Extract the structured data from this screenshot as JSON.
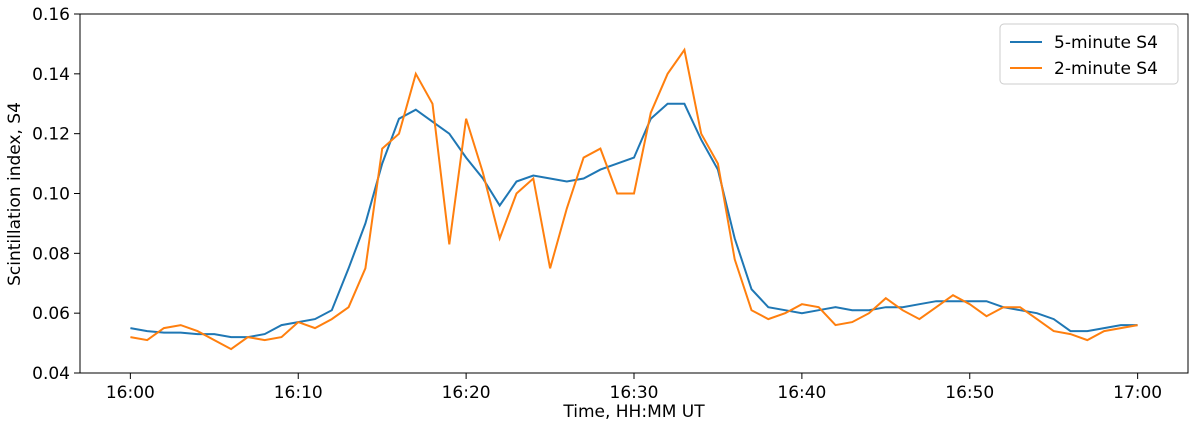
{
  "chart_data": {
    "type": "line",
    "xlabel": "Time, HH:MM UT",
    "ylabel": "Scintillation index, S4",
    "x": [
      "16:00",
      "16:01",
      "16:02",
      "16:03",
      "16:04",
      "16:05",
      "16:06",
      "16:07",
      "16:08",
      "16:09",
      "16:10",
      "16:11",
      "16:12",
      "16:13",
      "16:14",
      "16:15",
      "16:16",
      "16:17",
      "16:18",
      "16:19",
      "16:20",
      "16:21",
      "16:22",
      "16:23",
      "16:24",
      "16:25",
      "16:26",
      "16:27",
      "16:28",
      "16:29",
      "16:30",
      "16:31",
      "16:32",
      "16:33",
      "16:34",
      "16:35",
      "16:36",
      "16:37",
      "16:38",
      "16:39",
      "16:40",
      "16:41",
      "16:42",
      "16:43",
      "16:44",
      "16:45",
      "16:46",
      "16:47",
      "16:48",
      "16:49",
      "16:50",
      "16:51",
      "16:52",
      "16:53",
      "16:54",
      "16:55",
      "16:56",
      "16:57",
      "16:58",
      "16:59",
      "17:00"
    ],
    "series": [
      {
        "name": "5-minute S4",
        "color": "#1f77b4",
        "values": [
          0.055,
          0.054,
          0.0535,
          0.0535,
          0.053,
          0.053,
          0.052,
          0.052,
          0.053,
          0.056,
          0.057,
          0.058,
          0.061,
          0.075,
          0.09,
          0.11,
          0.125,
          0.128,
          0.124,
          0.12,
          0.112,
          0.105,
          0.096,
          0.104,
          0.106,
          0.105,
          0.104,
          0.105,
          0.108,
          0.11,
          0.112,
          0.125,
          0.13,
          0.13,
          0.118,
          0.108,
          0.085,
          0.068,
          0.062,
          0.061,
          0.06,
          0.061,
          0.062,
          0.061,
          0.061,
          0.062,
          0.062,
          0.063,
          0.064,
          0.064,
          0.064,
          0.064,
          0.062,
          0.061,
          0.06,
          0.058,
          0.054,
          0.054,
          0.055,
          0.056,
          0.056
        ]
      },
      {
        "name": "2-minute S4",
        "color": "#ff7f0e",
        "values": [
          0.052,
          0.051,
          0.055,
          0.056,
          0.054,
          0.051,
          0.048,
          0.052,
          0.051,
          0.052,
          0.057,
          0.055,
          0.058,
          0.062,
          0.075,
          0.115,
          0.12,
          0.14,
          0.13,
          0.083,
          0.125,
          0.107,
          0.085,
          0.1,
          0.105,
          0.075,
          0.095,
          0.112,
          0.115,
          0.1,
          0.1,
          0.127,
          0.14,
          0.148,
          0.12,
          0.11,
          0.078,
          0.061,
          0.058,
          0.06,
          0.063,
          0.062,
          0.056,
          0.057,
          0.06,
          0.065,
          0.061,
          0.058,
          0.062,
          0.066,
          0.063,
          0.059,
          0.062,
          0.062,
          0.058,
          0.054,
          0.053,
          0.051,
          0.054,
          0.055,
          0.056
        ]
      }
    ],
    "xlim": [
      "15:57",
      "17:03"
    ],
    "xticks": [
      "16:00",
      "16:10",
      "16:20",
      "16:30",
      "16:40",
      "16:50",
      "17:00"
    ],
    "ylim": [
      0.04,
      0.16
    ],
    "yticks": [
      0.04,
      0.06,
      0.08,
      {
        "value": 0.1,
        "label": "0.10"
      },
      0.12,
      0.14,
      0.16
    ],
    "legend": "upper right"
  }
}
